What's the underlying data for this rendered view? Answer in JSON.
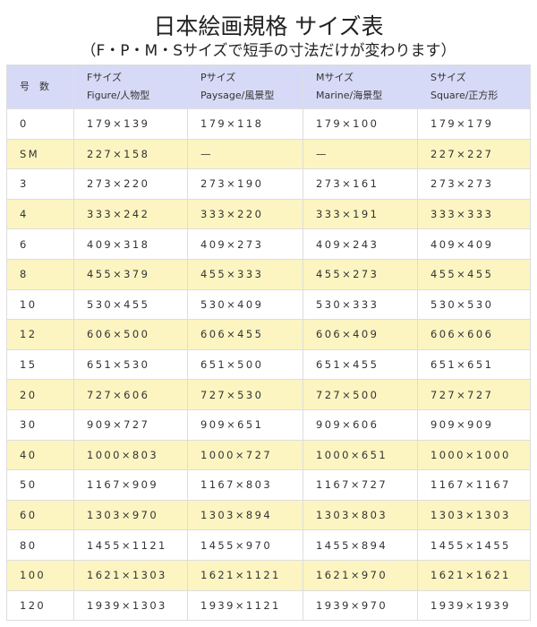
{
  "title": "日本絵画規格 サイズ表",
  "subtitle": "（F・P・M・Sサイズで短手の寸法だけが変わります）",
  "colors": {
    "header_bg": "#d7daf6",
    "alt_row_bg": "#fcf5c2",
    "border": "#dddddd"
  },
  "table": {
    "headers": [
      {
        "line1": "号　数",
        "line2": ""
      },
      {
        "line1": "Fサイズ",
        "line2": "Figure/人物型"
      },
      {
        "line1": "Pサイズ",
        "line2": "Paysage/風景型"
      },
      {
        "line1": "Mサイズ",
        "line2": "Marine/海景型"
      },
      {
        "line1": "Sサイズ",
        "line2": "Square/正方形"
      }
    ],
    "rows": [
      [
        "0",
        "179×139",
        "179×118",
        "179×100",
        "179×179"
      ],
      [
        "SM",
        "227×158",
        "—",
        "—",
        "227×227"
      ],
      [
        "3",
        "273×220",
        "273×190",
        "273×161",
        "273×273"
      ],
      [
        "4",
        "333×242",
        "333×220",
        "333×191",
        "333×333"
      ],
      [
        "6",
        "409×318",
        "409×273",
        "409×243",
        "409×409"
      ],
      [
        "8",
        "455×379",
        "455×333",
        "455×273",
        "455×455"
      ],
      [
        "10",
        "530×455",
        "530×409",
        "530×333",
        "530×530"
      ],
      [
        "12",
        "606×500",
        "606×455",
        "606×409",
        "606×606"
      ],
      [
        "15",
        "651×530",
        "651×500",
        "651×455",
        "651×651"
      ],
      [
        "20",
        "727×606",
        "727×530",
        "727×500",
        "727×727"
      ],
      [
        "30",
        "909×727",
        "909×651",
        "909×606",
        "909×909"
      ],
      [
        "40",
        "1000×803",
        "1000×727",
        "1000×651",
        "1000×1000"
      ],
      [
        "50",
        "1167×909",
        "1167×803",
        "1167×727",
        "1167×1167"
      ],
      [
        "60",
        "1303×970",
        "1303×894",
        "1303×803",
        "1303×1303"
      ],
      [
        "80",
        "1455×1121",
        "1455×970",
        "1455×894",
        "1455×1455"
      ],
      [
        "100",
        "1621×1303",
        "1621×1121",
        "1621×970",
        "1621×1621"
      ],
      [
        "120",
        "1939×1303",
        "1939×1121",
        "1939×970",
        "1939×1939"
      ]
    ]
  }
}
